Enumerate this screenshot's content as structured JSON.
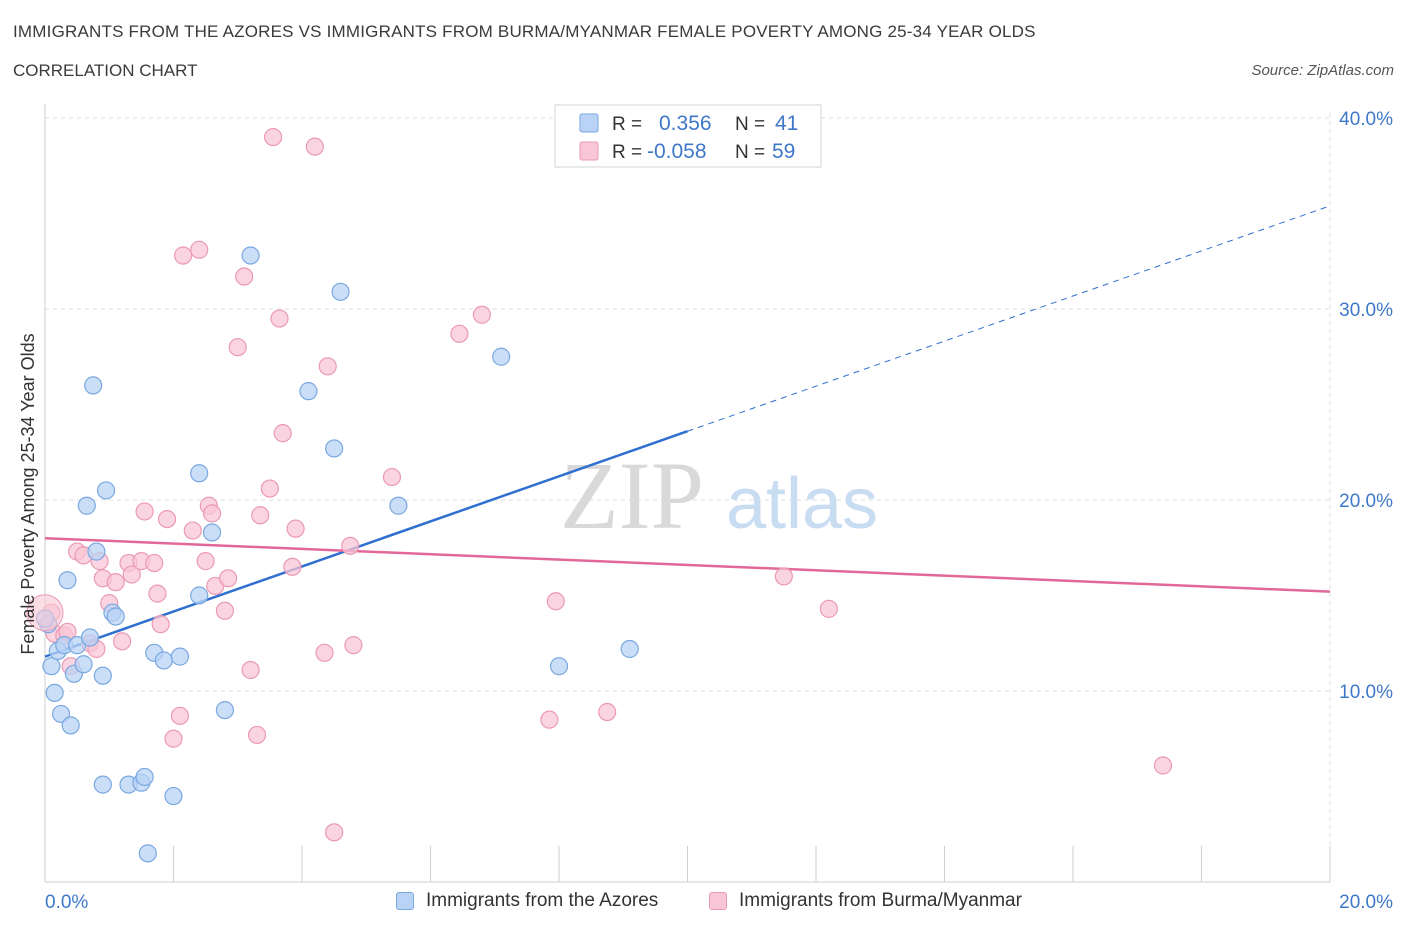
{
  "title": "IMMIGRANTS FROM THE AZORES VS IMMIGRANTS FROM BURMA/MYANMAR FEMALE POVERTY AMONG 25-34 YEAR OLDS",
  "subtitle": "CORRELATION CHART",
  "source": "Source: ZipAtlas.com",
  "watermark": {
    "zip": "ZIP",
    "atlas": "atlas"
  },
  "stats": [
    {
      "r_label": "R =",
      "r_value": "0.356",
      "n_label": "N =",
      "n_value": "41"
    },
    {
      "r_label": "R =",
      "r_value": "-0.058",
      "n_label": "N =",
      "n_value": "59"
    }
  ],
  "colors": {
    "azores_fill": "#b8d3f5",
    "azores_stroke": "#7aa8e0",
    "azores_line": "#2f6fd0",
    "burma_fill": "#f8c6d6",
    "burma_stroke": "#eb9ab4",
    "burma_line": "#e2689a",
    "tick_label": "#3f78c8",
    "grid": "#dcdcdc"
  },
  "chart_data": {
    "type": "scatter",
    "xlabel": "",
    "ylabel": "Female Poverty Among 25-34 Year Olds",
    "xlim": [
      0,
      20
    ],
    "ylim": [
      0,
      40
    ],
    "x_tick_labels": [
      "0.0%",
      "20.0%"
    ],
    "y_ticks": [
      10,
      20,
      30,
      40
    ],
    "y_tick_labels": [
      "10.0%",
      "20.0%",
      "30.0%",
      "40.0%"
    ],
    "grid": true,
    "legend_position": "bottom",
    "series": [
      {
        "name": "Immigrants from the Azores",
        "trend": {
          "x0": 0,
          "y0": 11.8,
          "x1": 20,
          "y1": 35.4,
          "solid_until_x": 10
        },
        "points": [
          [
            0.05,
            13.5
          ],
          [
            0.1,
            11.3
          ],
          [
            0.15,
            9.9
          ],
          [
            0.2,
            12.1
          ],
          [
            0.25,
            8.8
          ],
          [
            0.3,
            12.4
          ],
          [
            0.35,
            15.8
          ],
          [
            0.4,
            8.2
          ],
          [
            0.45,
            10.9
          ],
          [
            0.5,
            12.4
          ],
          [
            0.6,
            11.4
          ],
          [
            0.65,
            19.7
          ],
          [
            0.7,
            12.8
          ],
          [
            0.75,
            26.0
          ],
          [
            0.8,
            17.3
          ],
          [
            0.9,
            10.8
          ],
          [
            0.9,
            5.1
          ],
          [
            0.95,
            20.5
          ],
          [
            1.05,
            14.1
          ],
          [
            1.1,
            13.9
          ],
          [
            1.3,
            5.1
          ],
          [
            1.5,
            5.2
          ],
          [
            1.55,
            5.5
          ],
          [
            1.6,
            1.5
          ],
          [
            1.7,
            12.0
          ],
          [
            1.85,
            11.6
          ],
          [
            2.0,
            4.5
          ],
          [
            2.1,
            11.8
          ],
          [
            2.4,
            21.4
          ],
          [
            2.4,
            15.0
          ],
          [
            2.6,
            18.3
          ],
          [
            2.8,
            9.0
          ],
          [
            3.2,
            32.8
          ],
          [
            4.1,
            25.7
          ],
          [
            4.5,
            22.7
          ],
          [
            4.6,
            30.9
          ],
          [
            5.5,
            19.7
          ],
          [
            7.1,
            27.5
          ],
          [
            8.0,
            11.3
          ],
          [
            9.1,
            12.2
          ],
          [
            0.0,
            13.8
          ]
        ]
      },
      {
        "name": "Immigrants from Burma/Myanmar",
        "trend": {
          "x0": 0,
          "y0": 18.0,
          "x1": 20,
          "y1": 15.2
        },
        "points": [
          [
            0.1,
            14.1
          ],
          [
            0.15,
            13.0
          ],
          [
            0.3,
            12.9
          ],
          [
            0.35,
            13.1
          ],
          [
            0.4,
            11.3
          ],
          [
            0.5,
            17.3
          ],
          [
            0.6,
            17.1
          ],
          [
            0.7,
            12.5
          ],
          [
            0.8,
            12.2
          ],
          [
            0.85,
            16.8
          ],
          [
            0.9,
            15.9
          ],
          [
            1.0,
            14.6
          ],
          [
            1.1,
            15.7
          ],
          [
            1.2,
            12.6
          ],
          [
            1.3,
            16.7
          ],
          [
            1.35,
            16.1
          ],
          [
            1.5,
            16.8
          ],
          [
            1.55,
            19.4
          ],
          [
            1.7,
            16.7
          ],
          [
            1.75,
            15.1
          ],
          [
            1.8,
            13.5
          ],
          [
            1.9,
            19.0
          ],
          [
            2.0,
            7.5
          ],
          [
            2.1,
            8.7
          ],
          [
            2.15,
            32.8
          ],
          [
            2.3,
            18.4
          ],
          [
            2.4,
            33.1
          ],
          [
            2.5,
            16.8
          ],
          [
            2.55,
            19.7
          ],
          [
            2.6,
            19.3
          ],
          [
            2.65,
            15.5
          ],
          [
            2.8,
            14.2
          ],
          [
            2.85,
            15.9
          ],
          [
            3.0,
            28.0
          ],
          [
            3.1,
            31.7
          ],
          [
            3.2,
            11.1
          ],
          [
            3.3,
            7.7
          ],
          [
            3.35,
            19.2
          ],
          [
            3.5,
            20.6
          ],
          [
            3.65,
            29.5
          ],
          [
            3.7,
            23.5
          ],
          [
            3.85,
            16.5
          ],
          [
            3.9,
            18.5
          ],
          [
            4.2,
            38.5
          ],
          [
            4.35,
            12.0
          ],
          [
            4.4,
            27.0
          ],
          [
            4.5,
            2.6
          ],
          [
            4.75,
            17.6
          ],
          [
            4.8,
            12.4
          ],
          [
            5.4,
            21.2
          ],
          [
            6.45,
            28.7
          ],
          [
            6.8,
            29.7
          ],
          [
            7.85,
            8.5
          ],
          [
            7.95,
            14.7
          ],
          [
            8.75,
            8.9
          ],
          [
            11.5,
            16.0
          ],
          [
            12.2,
            14.3
          ],
          [
            17.4,
            6.1
          ],
          [
            3.55,
            39.0
          ]
        ]
      }
    ]
  }
}
